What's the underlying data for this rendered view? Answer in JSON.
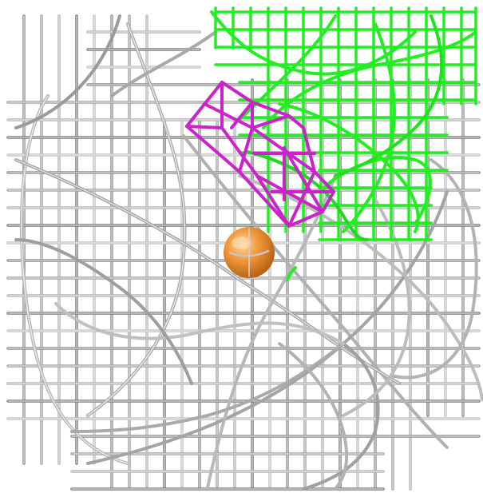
{
  "scene": {
    "background": "#ffffff",
    "meshes": [
      {
        "name": "grey-density-mesh",
        "color": "#a8a8a8",
        "highlight": "#e6e6e6",
        "shadow": "#555555"
      },
      {
        "name": "green-density-mesh",
        "color": "#22ee22",
        "shadow": "#0b9a0b"
      },
      {
        "name": "magenta-density-mesh",
        "color": "#cc22cc",
        "shadow": "#7a107a"
      }
    ],
    "atom": {
      "name": "orange-sphere",
      "color": "#f39a3c",
      "highlight": "#ffd7a0",
      "shadow": "#b86412"
    }
  }
}
